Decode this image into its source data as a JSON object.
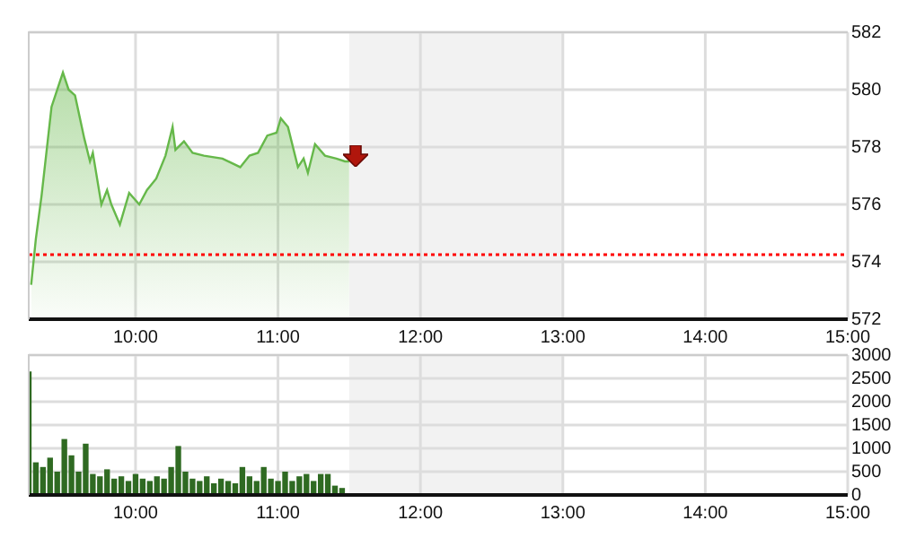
{
  "chart_data": [
    {
      "type": "area",
      "x": [
        9.267,
        9.3,
        9.34,
        9.41,
        9.49,
        9.53,
        9.575,
        9.64,
        9.68,
        9.7,
        9.76,
        9.8,
        9.83,
        9.89,
        9.955,
        10.026,
        10.08,
        10.145,
        10.21,
        10.26,
        10.28,
        10.34,
        10.4,
        10.48,
        10.61,
        10.735,
        10.8,
        10.86,
        10.925,
        10.99,
        11.02,
        11.07,
        11.14,
        11.18,
        11.21,
        11.26,
        11.33,
        11.41,
        11.47,
        11.5
      ],
      "series": [
        {
          "color": "#66b84a",
          "values": [
            573.2,
            574.8,
            576.3,
            579.4,
            580.6,
            580.0,
            579.8,
            578.3,
            577.5,
            577.8,
            576.0,
            576.5,
            576.0,
            575.3,
            576.4,
            576.0,
            576.5,
            576.9,
            577.7,
            578.7,
            577.9,
            578.2,
            577.8,
            577.7,
            577.6,
            577.3,
            577.7,
            577.8,
            578.4,
            578.5,
            579.0,
            578.7,
            577.3,
            577.6,
            577.1,
            578.1,
            577.7,
            577.6,
            577.5,
            577.5
          ]
        }
      ],
      "xlim": [
        9.25,
        15
      ],
      "xticks": [
        {
          "value": 10,
          "label": "10:00"
        },
        {
          "value": 11,
          "label": "11:00"
        },
        {
          "value": 12,
          "label": "12:00"
        },
        {
          "value": 13,
          "label": "13:00"
        },
        {
          "value": 14,
          "label": "14:00"
        },
        {
          "value": 15,
          "label": "15:00"
        }
      ],
      "ylim": [
        572,
        582
      ],
      "yticks": [
        572,
        574,
        576,
        578,
        580,
        582
      ],
      "ref_lines": [
        {
          "axis": "y",
          "value": 574.25,
          "color": "#ff0000",
          "line_style": "dotted"
        }
      ],
      "bands": [
        {
          "axis": "x",
          "from": 11.5,
          "to": 13,
          "color": "#f2f2f2"
        }
      ],
      "grid": true,
      "legend": false,
      "marker": "none"
    },
    {
      "type": "bar",
      "x": [
        9.25,
        9.3,
        9.35,
        9.4,
        9.45,
        9.5,
        9.55,
        9.6,
        9.65,
        9.7,
        9.75,
        9.8,
        9.85,
        9.9,
        9.95,
        10.0,
        10.05,
        10.1,
        10.15,
        10.2,
        10.25,
        10.3,
        10.35,
        10.4,
        10.45,
        10.5,
        10.55,
        10.6,
        10.65,
        10.7,
        10.75,
        10.8,
        10.85,
        10.9,
        10.95,
        11.0,
        11.05,
        11.1,
        11.15,
        11.2,
        11.25,
        11.3,
        11.35,
        11.4,
        11.45
      ],
      "series": [
        {
          "color": "#2f6a22",
          "values": [
            2650,
            700,
            600,
            800,
            500,
            1200,
            850,
            500,
            1100,
            450,
            400,
            550,
            350,
            400,
            300,
            450,
            350,
            300,
            400,
            350,
            600,
            1050,
            500,
            350,
            300,
            400,
            250,
            350,
            300,
            250,
            600,
            400,
            300,
            600,
            350,
            300,
            500,
            300,
            400,
            450,
            300,
            450,
            450,
            200,
            150
          ]
        }
      ],
      "xlim": [
        9.25,
        15
      ],
      "xticks": [
        {
          "value": 10,
          "label": "10:00"
        },
        {
          "value": 11,
          "label": "11:00"
        },
        {
          "value": 12,
          "label": "12:00"
        },
        {
          "value": 13,
          "label": "13:00"
        },
        {
          "value": 14,
          "label": "14:00"
        },
        {
          "value": 15,
          "label": "15:00"
        }
      ],
      "ylim": [
        0,
        3000
      ],
      "yticks": [
        0,
        500,
        1000,
        1500,
        2000,
        2500,
        3000
      ],
      "bands": [
        {
          "axis": "x",
          "from": 11.5,
          "to": 13,
          "color": "#f2f2f2"
        }
      ],
      "grid": true,
      "legend": false
    }
  ]
}
